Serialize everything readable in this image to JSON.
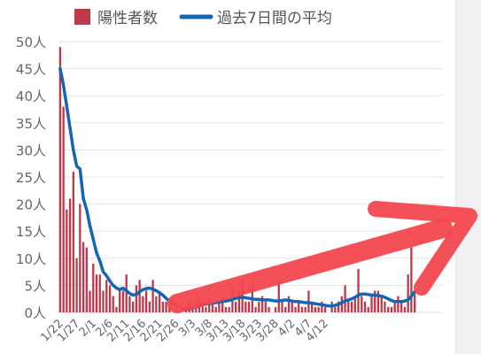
{
  "chart_data": {
    "type": "bar",
    "legend": {
      "position": "top",
      "bars_label": "陽性者数",
      "line_label": "過去7日間の平均"
    },
    "colors": {
      "bars": "#c0394b",
      "line": "#1565b5",
      "grid": "#e3e3e3",
      "annotation_arrow": "#f2474e"
    },
    "ylim": [
      0,
      50
    ],
    "grid": true,
    "yticks": [
      "0人",
      "5人",
      "10人",
      "15人",
      "20人",
      "25人",
      "30人",
      "35人",
      "40人",
      "45人",
      "50人"
    ],
    "xticks": [
      "1/22",
      "1/27",
      "2/1",
      "2/6",
      "2/11",
      "2/16",
      "2/21",
      "2/26",
      "3/3",
      "3/8",
      "3/13",
      "3/18",
      "3/23",
      "3/28",
      "4/2",
      "4/7",
      "4/12"
    ],
    "x_start": "1/22",
    "series": [
      {
        "name": "陽性者数",
        "type": "bar",
        "values": [
          49,
          38,
          19,
          21,
          26,
          10,
          20,
          13,
          12,
          4,
          9,
          7,
          7,
          4,
          6,
          5,
          3,
          1,
          4,
          4,
          7,
          3,
          2,
          5,
          6,
          3,
          4,
          2,
          6,
          3,
          4,
          2,
          2,
          1,
          0,
          1,
          1,
          0,
          1,
          2,
          1,
          2,
          3,
          2,
          1,
          3,
          2,
          1,
          2,
          3,
          1,
          1,
          5,
          2,
          4,
          6,
          2,
          2,
          5,
          1,
          2,
          3,
          2,
          1,
          0,
          1,
          6,
          2,
          1,
          3,
          2,
          1,
          2,
          1,
          1,
          4,
          2,
          1,
          1,
          2,
          1,
          0,
          2,
          1,
          2,
          3,
          5,
          2,
          2,
          3,
          8,
          3,
          2,
          1,
          3,
          4,
          4,
          3,
          2,
          1,
          1,
          2,
          3,
          2,
          1,
          7,
          12,
          4
        ]
      },
      {
        "name": "過去7日間の平均",
        "type": "line",
        "values": [
          45,
          42,
          38,
          34,
          30,
          27,
          26.5,
          21,
          19,
          16,
          13.5,
          11,
          9.5,
          7.5,
          6.8,
          5.8,
          5,
          4.5,
          4.2,
          4.5,
          4,
          3.5,
          3.2,
          3.3,
          3.8,
          4.2,
          4.4,
          4.5,
          4.3,
          4,
          3.6,
          3.2,
          2.6,
          2.1,
          1.7,
          1.3,
          1,
          0.7,
          0.5,
          0.6,
          0.8,
          1,
          1.2,
          1.4,
          1.5,
          1.6,
          1.7,
          1.8,
          1.9,
          2,
          2.1,
          2.2,
          2.4,
          2.6,
          2.7,
          2.8,
          2.7,
          2.6,
          2.5,
          2.4,
          2.4,
          2.3,
          2.3,
          2.3,
          2.2,
          2.1,
          2.1,
          2.2,
          2.3,
          2.2,
          2.1,
          2,
          2,
          1.9,
          1.8,
          1.8,
          1.7,
          1.6,
          1.5,
          1.4,
          1.3,
          1.2,
          1.2,
          1.3,
          1.5,
          1.8,
          2.1,
          2.3,
          2.5,
          2.8,
          3.2,
          3.4,
          3.4,
          3.3,
          3.2,
          3.2,
          3.1,
          3,
          2.8,
          2.5,
          2.2,
          2,
          2,
          2,
          2.1,
          2.3,
          3,
          3.8
        ]
      }
    ],
    "annotation": "red hand-drawn arrow pointing up and to the right over the chart"
  }
}
